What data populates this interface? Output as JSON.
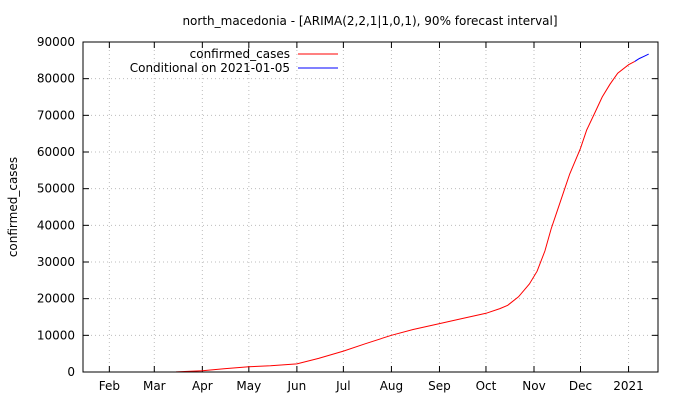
{
  "chart_data": {
    "type": "line",
    "title": "north_macedonia -  [ARIMA(2,2,1|1,0,1), 90% forecast interval]",
    "xlabel": "",
    "ylabel": "confirmed_cases",
    "ylim": [
      0,
      90000
    ],
    "xlim": [
      "2020-01-15",
      "2021-01-20"
    ],
    "x_ticks": [
      {
        "label": "Feb",
        "date": "2020-02-01"
      },
      {
        "label": "Mar",
        "date": "2020-03-01"
      },
      {
        "label": "Apr",
        "date": "2020-04-01"
      },
      {
        "label": "May",
        "date": "2020-05-01"
      },
      {
        "label": "Jun",
        "date": "2020-06-01"
      },
      {
        "label": "Jul",
        "date": "2020-07-01"
      },
      {
        "label": "Aug",
        "date": "2020-08-01"
      },
      {
        "label": "Sep",
        "date": "2020-09-01"
      },
      {
        "label": "Oct",
        "date": "2020-10-01"
      },
      {
        "label": "Nov",
        "date": "2020-11-01"
      },
      {
        "label": "Dec",
        "date": "2020-12-01"
      },
      {
        "label": "2021",
        "date": "2021-01-01"
      }
    ],
    "y_ticks": [
      0,
      10000,
      20000,
      30000,
      40000,
      50000,
      60000,
      70000,
      80000,
      90000
    ],
    "grid": true,
    "legend_position": "top-left",
    "series": [
      {
        "name": "confirmed_cases",
        "color": "#ff0000",
        "points": [
          {
            "x": "2020-02-26",
            "y": 0
          },
          {
            "x": "2020-03-15",
            "y": 15
          },
          {
            "x": "2020-04-01",
            "y": 329
          },
          {
            "x": "2020-04-15",
            "y": 900
          },
          {
            "x": "2020-05-01",
            "y": 1440
          },
          {
            "x": "2020-05-15",
            "y": 1700
          },
          {
            "x": "2020-06-01",
            "y": 2200
          },
          {
            "x": "2020-06-15",
            "y": 3700
          },
          {
            "x": "2020-07-01",
            "y": 5700
          },
          {
            "x": "2020-07-15",
            "y": 7700
          },
          {
            "x": "2020-08-01",
            "y": 10000
          },
          {
            "x": "2020-08-15",
            "y": 11600
          },
          {
            "x": "2020-09-01",
            "y": 13200
          },
          {
            "x": "2020-09-15",
            "y": 14500
          },
          {
            "x": "2020-10-01",
            "y": 16000
          },
          {
            "x": "2020-10-10",
            "y": 17300
          },
          {
            "x": "2020-10-15",
            "y": 18200
          },
          {
            "x": "2020-10-22",
            "y": 20500
          },
          {
            "x": "2020-10-29",
            "y": 24000
          },
          {
            "x": "2020-11-03",
            "y": 27500
          },
          {
            "x": "2020-11-08",
            "y": 33000
          },
          {
            "x": "2020-11-12",
            "y": 39000
          },
          {
            "x": "2020-11-16",
            "y": 44000
          },
          {
            "x": "2020-11-20",
            "y": 49000
          },
          {
            "x": "2020-11-24",
            "y": 54000
          },
          {
            "x": "2020-11-28",
            "y": 58000
          },
          {
            "x": "2020-12-01",
            "y": 61000
          },
          {
            "x": "2020-12-05",
            "y": 66000
          },
          {
            "x": "2020-12-10",
            "y": 70500
          },
          {
            "x": "2020-12-15",
            "y": 75000
          },
          {
            "x": "2020-12-20",
            "y": 78500
          },
          {
            "x": "2020-12-25",
            "y": 81500
          },
          {
            "x": "2021-01-01",
            "y": 83800
          },
          {
            "x": "2021-01-05",
            "y": 84700
          }
        ]
      },
      {
        "name": "Conditional on 2021-01-05",
        "color": "#0000ff",
        "points": [
          {
            "x": "2021-01-05",
            "y": 84700
          },
          {
            "x": "2021-01-08",
            "y": 85500
          },
          {
            "x": "2021-01-11",
            "y": 86100
          },
          {
            "x": "2021-01-14",
            "y": 86700
          }
        ]
      }
    ]
  }
}
